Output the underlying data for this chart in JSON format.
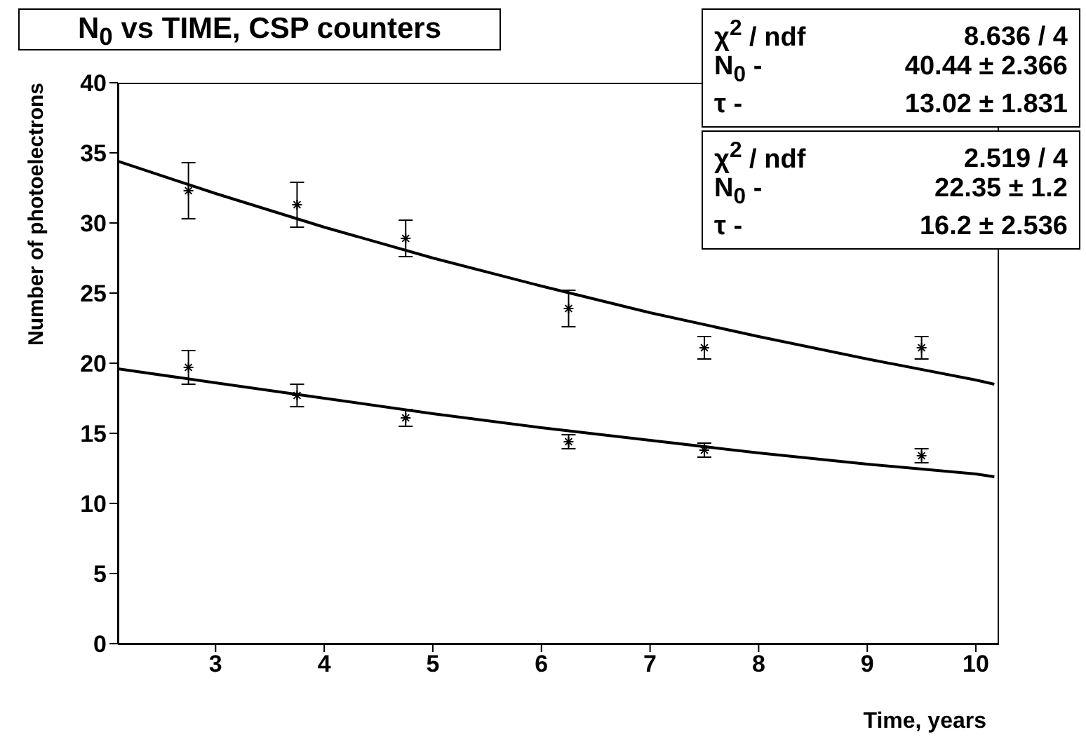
{
  "chart_data": {
    "type": "scatter",
    "title": "N$_{0}$ vs TIME, CSP counters",
    "xlabel": "Time, years",
    "ylabel": "Number of photoelectrons",
    "xlim": [
      2.1,
      10.2
    ],
    "xticks": [
      3,
      4,
      5,
      6,
      7,
      8,
      9,
      10
    ],
    "ylim": [
      0,
      40
    ],
    "yticks": [
      0,
      5,
      10,
      15,
      20,
      25,
      30,
      35,
      40
    ],
    "series": [
      {
        "color": "#000000",
        "x": [
          2.75,
          3.75,
          4.75,
          6.25,
          7.5,
          9.5
        ],
        "values": [
          32.3,
          31.3,
          28.9,
          23.9,
          21.1,
          21.1
        ],
        "errors": [
          2,
          1.6,
          1.3,
          1.3,
          0.8,
          0.8
        ]
      },
      {
        "color": "#000000",
        "x": [
          2.75,
          3.75,
          4.75,
          6.25,
          7.5,
          9.5
        ],
        "values": [
          19.7,
          17.7,
          16.1,
          14.4,
          13.8,
          13.4
        ],
        "errors": [
          1.2,
          0.8,
          0.6,
          0.5,
          0.5,
          0.5
        ]
      },
      {
        "type": "line",
        "marker": "none",
        "color": "#000000",
        "x": [
          2.1,
          3,
          4,
          5,
          6,
          7,
          8,
          9,
          10,
          10.17
        ],
        "values": [
          34.4,
          32.1,
          29.7,
          27.5,
          25.5,
          23.6,
          21.9,
          20.3,
          18.8,
          18.5
        ]
      },
      {
        "type": "line",
        "marker": "none",
        "color": "#000000",
        "x": [
          2.1,
          3,
          4,
          5,
          6,
          7,
          8,
          9,
          10,
          10.17
        ],
        "values": [
          19.6,
          18.6,
          17.5,
          16.4,
          15.4,
          14.5,
          13.6,
          12.8,
          12.1,
          11.9
        ]
      }
    ],
    "annotations": [
      "χ$^{2}$ / ndf",
      "8.636 / 4",
      "N$_{0}$ -",
      "40.44 ± 2.366",
      "τ -",
      "13.02 ± 1.831",
      "χ$^{2}$ / ndf",
      "2.519 / 4",
      "N$_{0}$ -",
      "22.35 ± 1.2",
      "τ -",
      "16.2 ± 2.536"
    ],
    "marker": "cross",
    "line_style": "solid",
    "grid": false,
    "legend": false
  }
}
